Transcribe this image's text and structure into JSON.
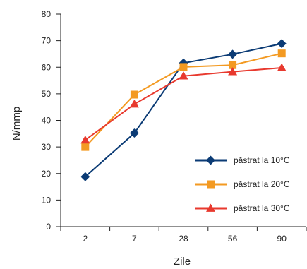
{
  "chart_data": {
    "type": "line",
    "categories": [
      "2",
      "7",
      "28",
      "56",
      "90"
    ],
    "xlabel": "Zile",
    "ylabel": "N/mmp",
    "ylim": [
      0,
      80
    ],
    "yticks": [
      "0",
      "10",
      "20",
      "30",
      "40",
      "50",
      "60",
      "70",
      "80"
    ],
    "grid": false,
    "legend_position": "right",
    "series": [
      {
        "name": "păstrat la 10°C",
        "values": [
          18.8,
          35.2,
          61.6,
          64.9,
          68.9
        ],
        "color": "#0b3b75",
        "marker": "diamond"
      },
      {
        "name": "păstrat la 20°C",
        "values": [
          30.0,
          49.7,
          60.1,
          60.8,
          65.2
        ],
        "color": "#f39a22",
        "marker": "square"
      },
      {
        "name": "păstrat la 30°C",
        "values": [
          32.6,
          46.1,
          56.7,
          58.3,
          59.8
        ],
        "color": "#e8392e",
        "marker": "triangle"
      }
    ]
  }
}
